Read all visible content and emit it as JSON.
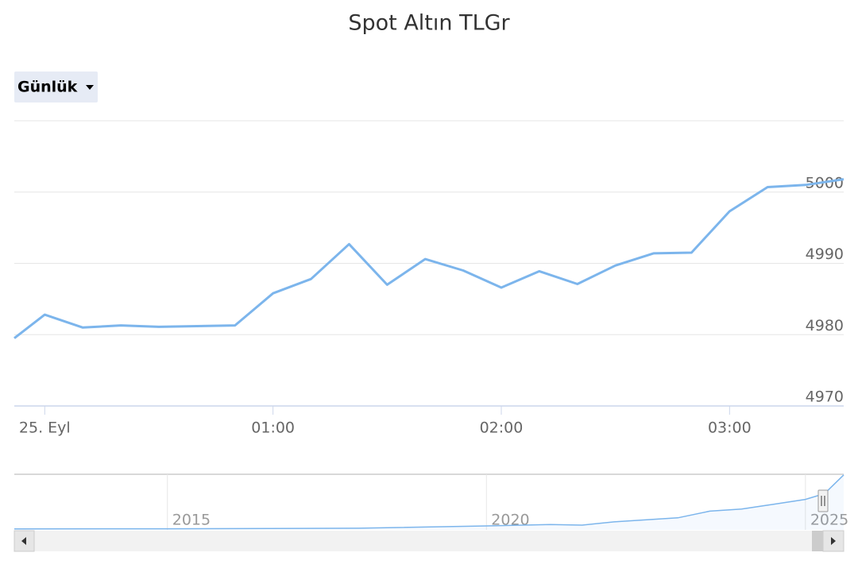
{
  "range_selector": {
    "label": "Günlük"
  },
  "chart_data": [
    {
      "type": "line",
      "title": "Spot Altın TLGr",
      "x": [
        -8,
        0,
        10,
        20,
        30,
        40,
        50,
        60,
        70,
        80,
        90,
        100,
        110,
        120,
        130,
        140,
        150,
        160,
        170,
        180,
        190,
        200,
        210
      ],
      "values": [
        4979.5,
        4982.8,
        4981.0,
        4981.3,
        4981.1,
        4981.2,
        4981.3,
        4985.8,
        4987.8,
        4992.7,
        4987.0,
        4990.6,
        4989.0,
        4986.6,
        4988.9,
        4987.1,
        4989.7,
        4991.4,
        4991.5,
        4997.3,
        5000.7,
        5001.0,
        5001.8
      ],
      "color": "#7cb5ec",
      "xlim": [
        -8,
        210
      ],
      "xticks": [
        {
          "value": 0,
          "label": "25. Eyl"
        },
        {
          "value": 60,
          "label": "01:00"
        },
        {
          "value": 120,
          "label": "02:00"
        },
        {
          "value": 180,
          "label": "03:00"
        }
      ],
      "ylim": [
        4970,
        5010
      ],
      "yticks": [
        4970,
        4980,
        4990,
        5000
      ],
      "grid": true
    },
    {
      "type": "area",
      "x": [
        2012.6,
        2015,
        2018,
        2020,
        2021,
        2021.5,
        2022,
        2023,
        2023.5,
        2024,
        2024.5,
        2025,
        2025.3,
        2025.6
      ],
      "values": [
        95,
        100,
        150,
        360,
        480,
        430,
        730,
        1100,
        1700,
        1900,
        2330,
        2770,
        3300,
        4990
      ],
      "color": "#7cb5ec",
      "xlim": [
        2012.6,
        2025.6
      ],
      "xticks": [
        2015,
        2020,
        2025
      ],
      "ylim": [
        0,
        5050
      ],
      "grid": true
    }
  ]
}
